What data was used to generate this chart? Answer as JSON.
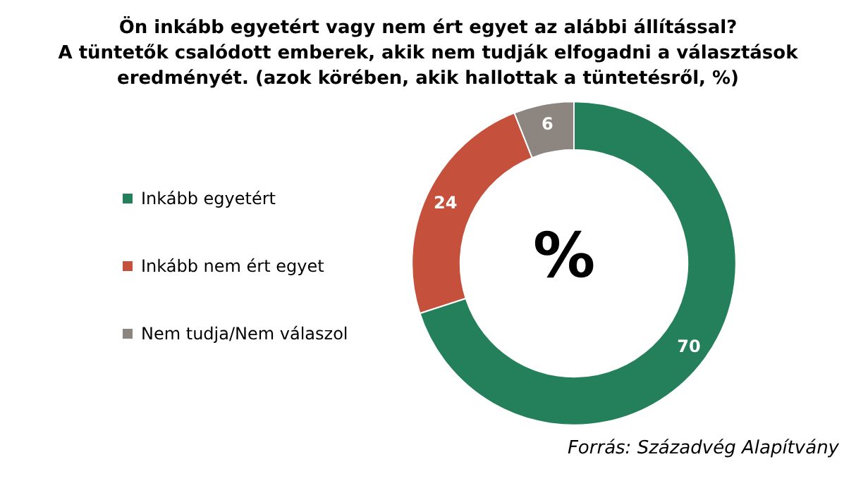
{
  "chart_data": {
    "type": "donut",
    "title": "Ön inkább egyetért vagy nem ért egyet az alábbi állítással?\nA tüntetők csalódott emberek, akik nem tudják elfogadni a választások\neredményét. (azok körében, akik hallottak a tüntetésről, %)",
    "categories": [
      "Inkább egyetért",
      "Inkább nem ért egyet",
      "Nem tudja/Nem válaszol"
    ],
    "values": [
      70,
      24,
      6
    ],
    "colors": [
      "#23805a",
      "#c5503c",
      "#8c8580"
    ],
    "data_labels": true,
    "legend": "left",
    "annotations": [
      "%",
      "Forrás: Századvég Alapítvány"
    ]
  }
}
